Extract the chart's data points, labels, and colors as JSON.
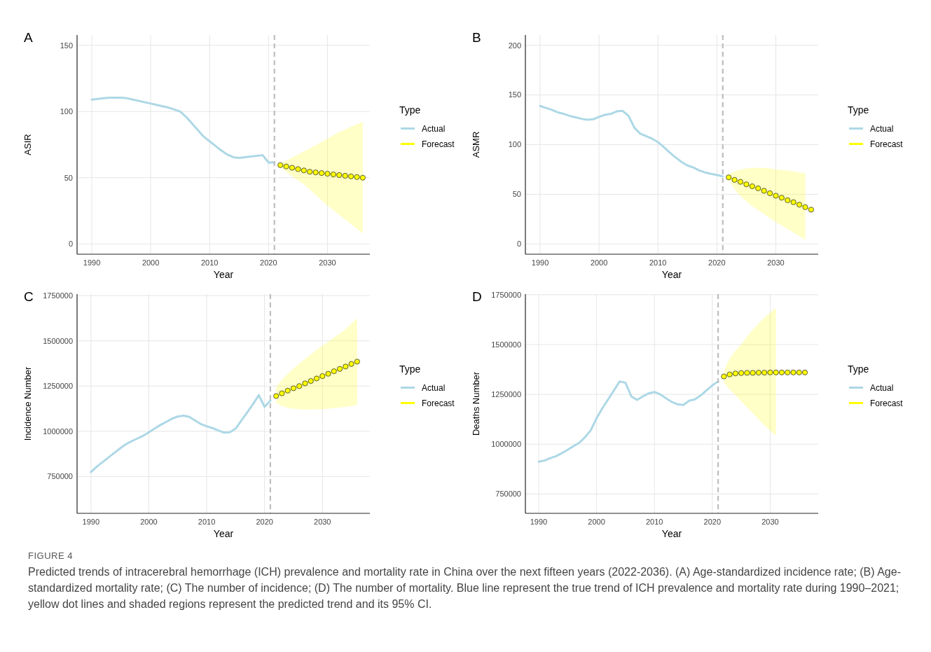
{
  "chart_data": [
    {
      "type": "line",
      "title": "A",
      "xlabel": "Year",
      "ylabel": "ASIR",
      "legend_title": "Type",
      "legend": "right",
      "grid": true,
      "xlim": [
        1987.5,
        2037.2
      ],
      "xticks": [
        1990,
        2000,
        2010,
        2020,
        2030
      ],
      "ylim": [
        -7.8,
        157.8
      ],
      "yticks": [
        0,
        50,
        100,
        150
      ],
      "ref_lines": [
        {
          "axis": "x",
          "value": 2021,
          "color": "#bebebe",
          "line_style": "dashed"
        }
      ],
      "series": [
        {
          "name": "Actual",
          "color": "#add8e6",
          "x": [
            1990,
            1991,
            1992,
            1993,
            1994,
            1995,
            1996,
            1997,
            1998,
            1999,
            2000,
            2001,
            2002,
            2003,
            2004,
            2005,
            2006,
            2007,
            2008,
            2009,
            2010,
            2011,
            2012,
            2013,
            2014,
            2015,
            2016,
            2017,
            2018,
            2019,
            2020,
            2021
          ],
          "values": [
            109,
            109.5,
            110,
            110.5,
            110.5,
            110.5,
            110,
            109,
            108,
            107,
            106,
            105,
            104,
            103,
            101.5,
            100,
            96,
            91,
            86,
            81,
            77.5,
            74,
            70.5,
            67.5,
            65.5,
            65,
            65.5,
            66,
            66.5,
            67,
            61.5,
            61.5
          ]
        },
        {
          "name": "Forecast",
          "color": "#ffff00",
          "marker": "circle",
          "x": [
            2022,
            2023,
            2024,
            2025,
            2026,
            2027,
            2028,
            2029,
            2030,
            2031,
            2032,
            2033,
            2034,
            2035,
            2036
          ],
          "values": [
            59.5,
            58.5,
            57.5,
            56.5,
            55.5,
            54.5,
            54,
            53.5,
            53,
            52.5,
            52,
            51.5,
            51,
            50.5,
            50
          ],
          "lower": [
            58,
            54.5,
            51,
            48,
            45,
            41,
            37,
            33,
            29,
            25.5,
            22,
            18.5,
            15,
            11.5,
            8
          ],
          "upper": [
            61,
            63,
            65,
            67.5,
            70,
            72,
            74.5,
            77,
            79.5,
            82,
            84.5,
            86.5,
            88.5,
            90.5,
            92
          ]
        }
      ]
    },
    {
      "type": "line",
      "title": "B",
      "xlabel": "Year",
      "ylabel": "ASMR",
      "legend_title": "Type",
      "legend": "right",
      "grid": true,
      "xlim": [
        1987.5,
        2037.2
      ],
      "xticks": [
        1990,
        2000,
        2010,
        2020,
        2030
      ],
      "ylim": [
        -10.4,
        210.4
      ],
      "yticks": [
        0,
        50,
        100,
        150,
        200
      ],
      "ref_lines": [
        {
          "axis": "x",
          "value": 2021,
          "color": "#bebebe",
          "line_style": "dashed"
        }
      ],
      "series": [
        {
          "name": "Actual",
          "color": "#add8e6",
          "x": [
            1990,
            1991,
            1992,
            1993,
            1994,
            1995,
            1996,
            1997,
            1998,
            1999,
            2000,
            2001,
            2002,
            2003,
            2004,
            2005,
            2006,
            2007,
            2008,
            2009,
            2010,
            2011,
            2012,
            2013,
            2014,
            2015,
            2016,
            2017,
            2018,
            2019,
            2020,
            2021
          ],
          "values": [
            139,
            137,
            135,
            132.5,
            131,
            129,
            127.5,
            126,
            125,
            125.5,
            128,
            130,
            131,
            133.5,
            134,
            129,
            117,
            111,
            108.5,
            106,
            102.5,
            97.5,
            92,
            87,
            82.5,
            79,
            77,
            74,
            72,
            70.5,
            69.5,
            68
          ]
        },
        {
          "name": "Forecast",
          "color": "#ffff00",
          "marker": "circle",
          "x": [
            2022,
            2023,
            2024,
            2025,
            2026,
            2027,
            2028,
            2029,
            2030,
            2031,
            2032,
            2033,
            2034,
            2035,
            2036
          ],
          "values": [
            67,
            64.5,
            62.5,
            60,
            58,
            56,
            53.5,
            51,
            48.5,
            46.5,
            44,
            42,
            39.5,
            37,
            34.5
          ],
          "lower": [
            65,
            55,
            48,
            43,
            38,
            34,
            30,
            26,
            22,
            18.5,
            15,
            11.5,
            8,
            4,
            null
          ],
          "upper": [
            70,
            73,
            75,
            76,
            76.5,
            76.5,
            76.5,
            76,
            75,
            74.5,
            74,
            73,
            72,
            71,
            null
          ]
        }
      ]
    },
    {
      "type": "line",
      "title": "C",
      "xlabel": "Year",
      "ylabel": "Incidence Number",
      "legend_title": "Type",
      "legend": "right",
      "grid": true,
      "xlim": [
        1987.6,
        2038.2
      ],
      "xticks": [
        1990,
        2000,
        2010,
        2020,
        2030
      ],
      "ylim": [
        547000,
        1758000
      ],
      "yticks": [
        750000,
        1000000,
        1250000,
        1500000,
        1750000
      ],
      "ref_lines": [
        {
          "axis": "x",
          "value": 2021,
          "color": "#bebebe",
          "line_style": "dashed"
        }
      ],
      "series": [
        {
          "name": "Actual",
          "color": "#add8e6",
          "x": [
            1990,
            1991,
            1992,
            1993,
            1994,
            1995,
            1996,
            1997,
            1998,
            1999,
            2000,
            2001,
            2002,
            2003,
            2004,
            2005,
            2006,
            2007,
            2008,
            2009,
            2010,
            2011,
            2012,
            2013,
            2014,
            2015,
            2016,
            2017,
            2018,
            2019,
            2020,
            2021
          ],
          "values": [
            775000,
            805000,
            830000,
            855000,
            880000,
            905000,
            928000,
            945000,
            960000,
            975000,
            995000,
            1015000,
            1035000,
            1052000,
            1070000,
            1082000,
            1087000,
            1080000,
            1060000,
            1040000,
            1028000,
            1018000,
            1005000,
            993000,
            995000,
            1015000,
            1060000,
            1105000,
            1150000,
            1200000,
            1135000,
            1170000
          ]
        },
        {
          "name": "Forecast",
          "color": "#ffff00",
          "marker": "circle",
          "x": [
            2022,
            2023,
            2024,
            2025,
            2026,
            2027,
            2028,
            2029,
            2030,
            2031,
            2032,
            2033,
            2034,
            2035,
            2036
          ],
          "values": [
            1195000,
            1210000,
            1225000,
            1238000,
            1250000,
            1265000,
            1278000,
            1292000,
            1305000,
            1318000,
            1332000,
            1345000,
            1358000,
            1372000,
            1385000
          ],
          "lower": [
            1158000,
            1140000,
            1130000,
            1125000,
            1122000,
            1121000,
            1121000,
            1122000,
            1123000,
            1125000,
            1128000,
            1131000,
            1135000,
            1140000,
            1145000
          ],
          "upper": [
            1245000,
            1285000,
            1318000,
            1347000,
            1375000,
            1400000,
            1425000,
            1450000,
            1473000,
            1495000,
            1518000,
            1540000,
            1565000,
            1595000,
            1625000
          ]
        }
      ]
    },
    {
      "type": "line",
      "title": "D",
      "xlabel": "Year",
      "ylabel": "Deaths Number",
      "legend_title": "Type",
      "legend": "right",
      "grid": true,
      "xlim": [
        1987.7,
        2038.3
      ],
      "xticks": [
        1990,
        2000,
        2010,
        2020,
        2030
      ],
      "ylim": [
        653000,
        1753000
      ],
      "yticks": [
        750000,
        1000000,
        1250000,
        1500000,
        1750000
      ],
      "ref_lines": [
        {
          "axis": "x",
          "value": 2021,
          "color": "#bebebe",
          "line_style": "dashed"
        }
      ],
      "annotations": [
        "FIGURE 4",
        "Predicted trends of intracerebral hemorrhage (ICH) prevalence and mortality rate in China over the next fifteen years (2022-2036). (A) Age-standardized incidence rate; (B) Age-standardized mortality rate; (C) The number of incidence; (D) The number of mortality. Blue line represent the true trend of ICH prevalence and mortality rate during 1990–2021; yellow dot lines and shaded regions represent the predicted trend and its 95% CI."
      ],
      "series": [
        {
          "name": "Actual",
          "color": "#add8e6",
          "x": [
            1990,
            1991,
            1992,
            1993,
            1994,
            1995,
            1996,
            1997,
            1998,
            1999,
            2000,
            2001,
            2002,
            2003,
            2004,
            2005,
            2006,
            2007,
            2008,
            2009,
            2010,
            2011,
            2012,
            2013,
            2014,
            2015,
            2016,
            2017,
            2018,
            2019,
            2020,
            2021
          ],
          "values": [
            912000,
            918000,
            930000,
            940000,
            955000,
            972000,
            990000,
            1007000,
            1035000,
            1070000,
            1130000,
            1180000,
            1225000,
            1270000,
            1315000,
            1308000,
            1240000,
            1222000,
            1240000,
            1255000,
            1262000,
            1250000,
            1230000,
            1212000,
            1200000,
            1197000,
            1218000,
            1225000,
            1245000,
            1270000,
            1295000,
            1315000
          ]
        },
        {
          "name": "Forecast",
          "color": "#ffff00",
          "marker": "circle",
          "x": [
            2022,
            2023,
            2024,
            2025,
            2026,
            2027,
            2028,
            2029,
            2030,
            2031,
            2032,
            2033,
            2034,
            2035,
            2036
          ],
          "values": [
            1340000,
            1350000,
            1355000,
            1357000,
            1358000,
            1358000,
            1359000,
            1359000,
            1360000,
            1360000,
            1360000,
            1360000,
            1360000,
            1360000,
            1360000
          ],
          "lower": [
            1310000,
            1275000,
            1245000,
            1215000,
            1185000,
            1155000,
            1125000,
            1095000,
            1068000,
            1042000,
            null,
            null,
            null,
            null,
            null
          ],
          "upper": [
            1370000,
            1430000,
            1470000,
            1500000,
            1540000,
            1575000,
            1605000,
            1635000,
            1660000,
            1685000,
            null,
            null,
            null,
            null,
            null
          ]
        }
      ]
    }
  ]
}
